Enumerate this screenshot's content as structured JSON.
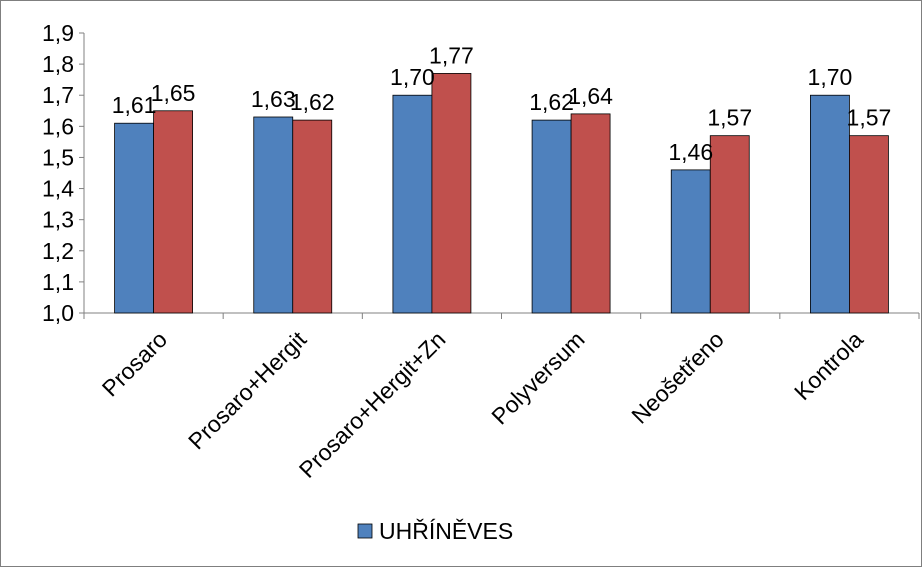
{
  "chart_data": {
    "type": "bar",
    "categories": [
      "Prosaro",
      "Prosaro+Hergit",
      "Prosaro+Hergit+Zn",
      "Polyversum",
      "Neošetřeno",
      "Kontrola"
    ],
    "series": [
      {
        "name": "UHŘÍNĚVES",
        "color": "#4f81bd",
        "values": [
          1.61,
          1.63,
          1.7,
          1.62,
          1.46,
          1.7
        ],
        "labels": [
          "1,61",
          "1,63",
          "1,70",
          "1,62",
          "1,46",
          "1,70"
        ]
      },
      {
        "name": "",
        "color": "#c0504d",
        "values": [
          1.65,
          1.62,
          1.77,
          1.64,
          1.57,
          1.57
        ],
        "labels": [
          "1,65",
          "1,62",
          "1,77",
          "1,64",
          "1,57",
          "1,57"
        ]
      }
    ],
    "ylim": [
      1.0,
      1.9
    ],
    "yticks": [
      1.0,
      1.1,
      1.2,
      1.3,
      1.4,
      1.5,
      1.6,
      1.7,
      1.8,
      1.9
    ],
    "ytick_labels": [
      "1,0",
      "1,1",
      "1,2",
      "1,3",
      "1,4",
      "1,5",
      "1,6",
      "1,7",
      "1,8",
      "1,9"
    ],
    "grid": false,
    "legend": "bottom",
    "xlabel": "",
    "ylabel": "",
    "title": ""
  }
}
